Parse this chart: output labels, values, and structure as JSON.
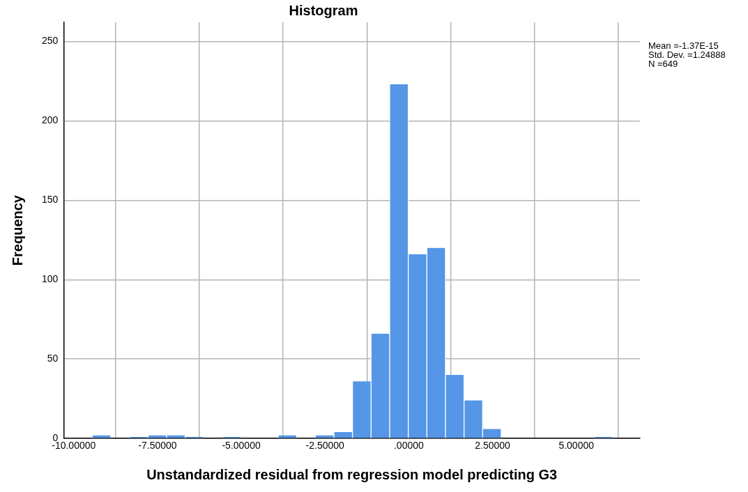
{
  "chart_data": {
    "type": "histogram",
    "title": "Histogram",
    "xlabel": "Unstandardized residual from regression model predicting G3",
    "ylabel": "Frequency",
    "bins": [
      -9.45,
      -8.895,
      -8.34,
      -7.785,
      -7.23,
      -6.675,
      -6.12,
      -5.565,
      -5.01,
      -4.455,
      -3.9,
      -3.345,
      -2.79,
      -2.235,
      -1.68,
      -1.125,
      -0.57,
      -0.015,
      0.54,
      1.095,
      1.65,
      2.205,
      2.76,
      3.315,
      3.87,
      4.425,
      4.98,
      5.535,
      6.09
    ],
    "values": [
      2,
      0,
      1,
      2,
      2,
      1,
      0,
      1,
      0,
      0,
      2,
      0,
      2,
      4,
      36,
      66,
      223,
      116,
      120,
      40,
      24,
      6,
      0,
      0,
      0,
      0,
      0,
      1
    ],
    "color": "#5596e6",
    "xlim": [
      -10.3,
      6.9
    ],
    "xticks": [
      {
        "value": -10,
        "label": "-10.00000"
      },
      {
        "value": -7.5,
        "label": "-7.50000"
      },
      {
        "value": -5,
        "label": "-5.00000"
      },
      {
        "value": -2.5,
        "label": "-2.50000"
      },
      {
        "value": 0,
        "label": ".00000"
      },
      {
        "value": 2.5,
        "label": "2.50000"
      },
      {
        "value": 5,
        "label": "5.00000"
      }
    ],
    "ylim": [
      0,
      262
    ],
    "yticks": [
      0,
      50,
      100,
      150,
      200,
      250
    ],
    "grid": true,
    "annotations": [
      "Mean =-1.37E-15",
      "Std. Dev. =1.24888",
      "N =649"
    ]
  }
}
